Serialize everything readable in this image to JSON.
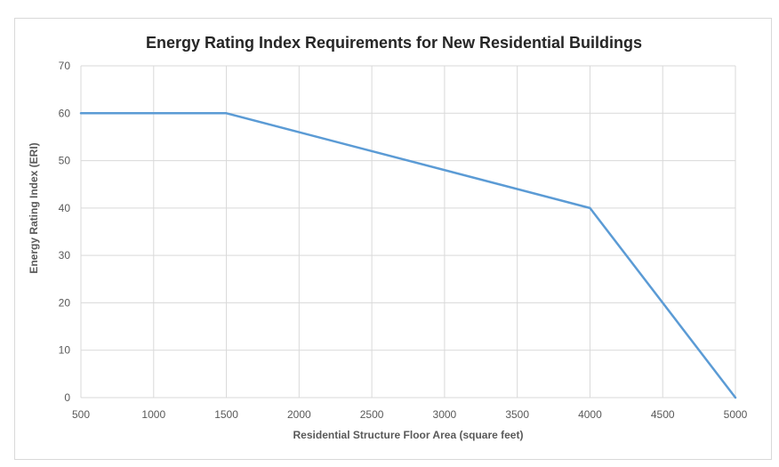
{
  "chart_data": {
    "type": "line",
    "title": "Energy Rating Index Requirements for New Residential Buildings",
    "xlabel": "Residential Structure Floor Area (square feet)",
    "ylabel": "Energy Rating Index (ERI)",
    "xlim": [
      500,
      5000
    ],
    "ylim": [
      0,
      70
    ],
    "x_ticks": [
      500,
      1000,
      1500,
      2000,
      2500,
      3000,
      3500,
      4000,
      4500,
      5000
    ],
    "y_ticks": [
      0,
      10,
      20,
      30,
      40,
      50,
      60,
      70
    ],
    "grid": true,
    "legend": "none",
    "series": [
      {
        "color": "#5b9bd5",
        "x": [
          500,
          1500,
          4000,
          5000
        ],
        "y": [
          60,
          60,
          40,
          0
        ]
      }
    ]
  }
}
